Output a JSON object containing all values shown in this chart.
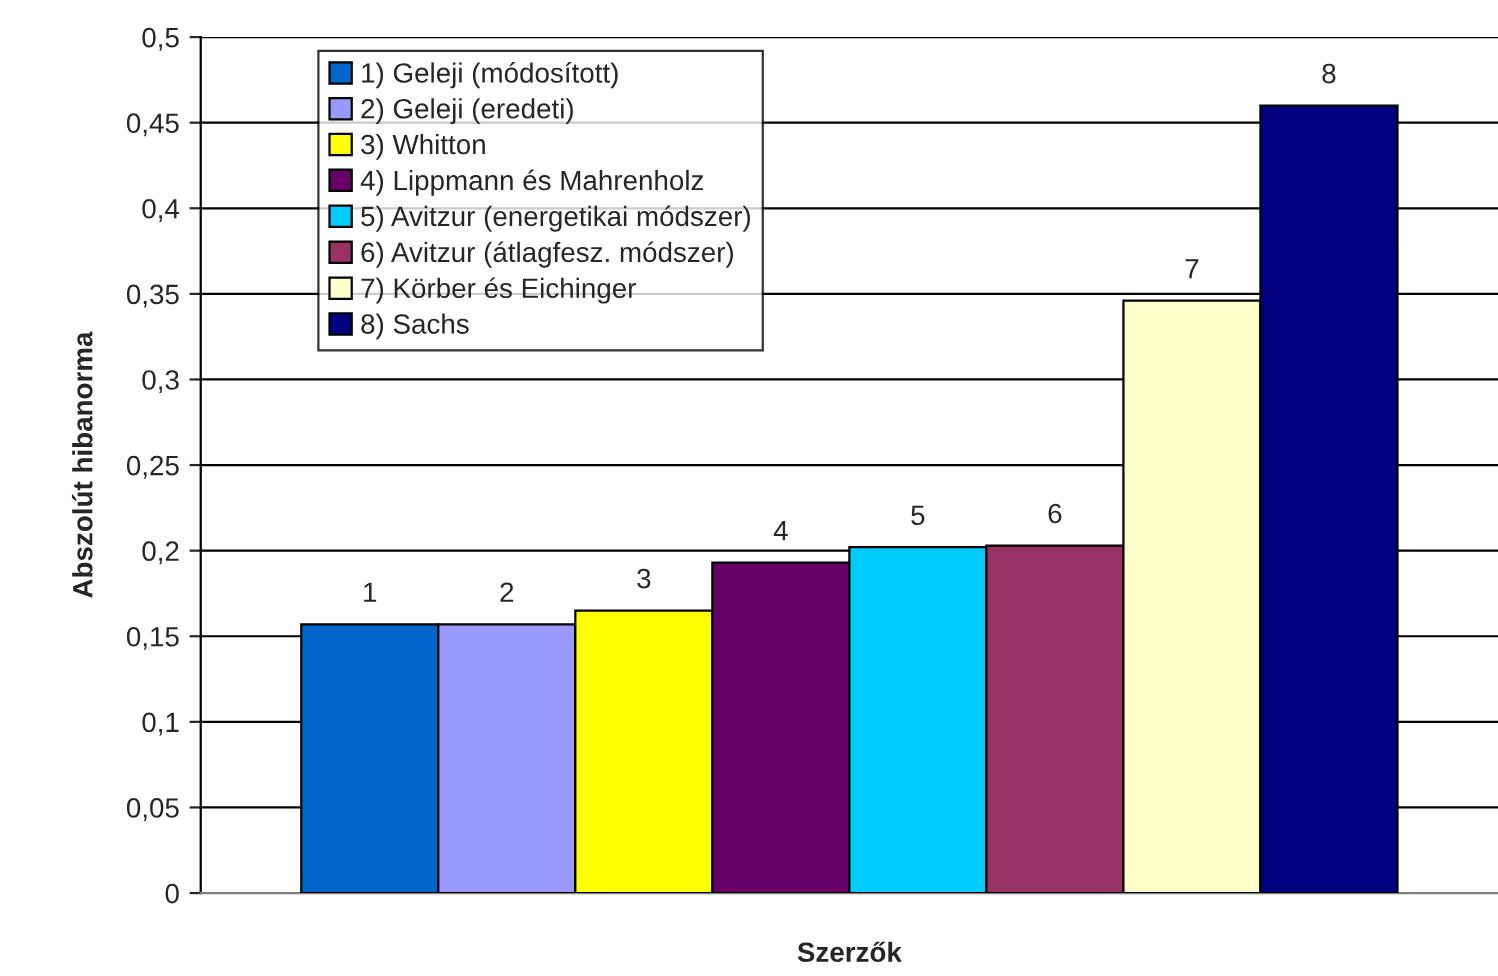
{
  "chart_data": {
    "type": "bar",
    "xlabel": "Szerzők",
    "ylabel": "Abszolút hibanorma",
    "categories": [
      null
    ],
    "series": [
      {
        "name": "1) Geleji (módosított)",
        "color": "#0066cc",
        "values": [
          0.157
        ]
      },
      {
        "name": "2) Geleji (eredeti)",
        "color": "#9999ff",
        "values": [
          0.157
        ]
      },
      {
        "name": "3) Whitton",
        "color": "#ffff00",
        "values": [
          0.165
        ]
      },
      {
        "name": "4) Lippmann és Mahrenholz",
        "color": "#660066",
        "values": [
          0.193
        ]
      },
      {
        "name": "5) Avitzur (energetikai módszer)",
        "color": "#00ccff",
        "values": [
          0.202
        ]
      },
      {
        "name": "6) Avitzur (átlagfesz. módszer)",
        "color": "#993366",
        "values": [
          0.203
        ]
      },
      {
        "name": "7) Körber és Eichinger",
        "color": "#ffffcc",
        "values": [
          0.346
        ]
      },
      {
        "name": "8) Sachs",
        "color": "#000080",
        "values": [
          0.46
        ]
      }
    ],
    "annotations": [
      {
        "text": "1",
        "y": 0.157
      },
      {
        "text": "2",
        "y": 0.157
      },
      {
        "text": "3",
        "y": 0.165
      },
      {
        "text": "4",
        "y": 0.193
      },
      {
        "text": "5",
        "y": 0.202
      },
      {
        "text": "6",
        "y": 0.203
      },
      {
        "text": "7",
        "y": 0.346
      },
      {
        "text": "8",
        "y": 0.46
      }
    ],
    "ylim": [
      0,
      0.5
    ],
    "yticks": [
      {
        "value": 0,
        "label": "0"
      },
      {
        "value": 0.05,
        "label": "0,05"
      },
      {
        "value": 0.1,
        "label": "0,1"
      },
      {
        "value": 0.15,
        "label": "0,15"
      },
      {
        "value": 0.2,
        "label": "0,2"
      },
      {
        "value": 0.25,
        "label": "0,25"
      },
      {
        "value": 0.3,
        "label": "0,3"
      },
      {
        "value": 0.35,
        "label": "0,35"
      },
      {
        "value": 0.4,
        "label": "0,4"
      },
      {
        "value": 0.45,
        "label": "0,45"
      },
      {
        "value": 0.5,
        "label": "0,5"
      }
    ],
    "grid": "y",
    "legend": "top left"
  }
}
